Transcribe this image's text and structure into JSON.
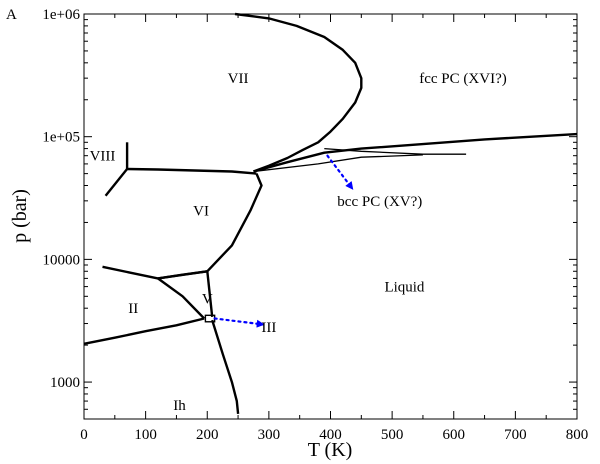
{
  "panel_label": "A",
  "chart_data": {
    "type": "line",
    "xlabel": "T (K)",
    "ylabel": "p (bar)",
    "xlim": [
      0,
      800
    ],
    "ylim": [
      500,
      1000000
    ],
    "yscale": "log",
    "grid": false,
    "x_ticks": [
      0,
      100,
      200,
      300,
      400,
      500,
      600,
      700,
      800
    ],
    "x_tick_labels": [
      "0",
      "100",
      "200",
      "300",
      "400",
      "500",
      "600",
      "700",
      "800"
    ],
    "y_ticks": [
      1000,
      10000,
      100000,
      1000000
    ],
    "y_tick_labels": [
      "1000",
      "10000",
      "1e+05",
      "1e+06"
    ],
    "phase_regions": [
      {
        "label": "VII",
        "x": 250,
        "y": 300000
      },
      {
        "label": "fcc PC (XVI?)",
        "x": 615,
        "y": 300000
      },
      {
        "label": "VIII",
        "x": 30,
        "y": 70000
      },
      {
        "label": "VI",
        "x": 190,
        "y": 25000
      },
      {
        "label": "bcc PC (XV?)",
        "x": 480,
        "y": 30000
      },
      {
        "label": "Liquid",
        "x": 520,
        "y": 6000
      },
      {
        "label": "V",
        "x": 200,
        "y": 4800
      },
      {
        "label": "II",
        "x": 80,
        "y": 4000
      },
      {
        "label": "III",
        "x": 300,
        "y": 2800
      },
      {
        "label": "Ih",
        "x": 155,
        "y": 650
      }
    ],
    "boundaries": [
      {
        "x": [
          245,
          300,
          345,
          390,
          420,
          440,
          450,
          450,
          440,
          420,
          400,
          380,
          355,
          330,
          300,
          275
        ],
        "y": [
          1000000,
          920000,
          800000,
          650000,
          510000,
          400000,
          300000,
          250000,
          190000,
          140000,
          110000,
          90000,
          78000,
          67000,
          58000,
          52000
        ]
      },
      {
        "x": [
          275,
          330,
          390,
          450,
          550,
          650,
          800
        ],
        "y": [
          52000,
          62000,
          74000,
          80000,
          87000,
          95000,
          105000
        ]
      },
      {
        "x": [
          275,
          380,
          450,
          550
        ],
        "y": [
          52000,
          60000,
          68000,
          71000
        ]
      },
      {
        "x": [
          390,
          450,
          550,
          620
        ],
        "y": [
          80000,
          76000,
          72000,
          72000
        ]
      },
      {
        "x": [
          70,
          120,
          180,
          240,
          280
        ],
        "y": [
          54500,
          54000,
          53000,
          52000,
          50000
        ]
      },
      {
        "x": [
          70,
          70
        ],
        "y": [
          54500,
          90000
        ]
      },
      {
        "x": [
          70,
          35
        ],
        "y": [
          54500,
          33000
        ]
      },
      {
        "x": [
          280,
          288,
          270,
          240,
          200
        ],
        "y": [
          50000,
          40000,
          25000,
          13000,
          8000
        ]
      },
      {
        "x": [
          200,
          160,
          120,
          80,
          30
        ],
        "y": [
          8000,
          7500,
          7000,
          7700,
          8700
        ]
      },
      {
        "x": [
          120,
          200
        ],
        "y": [
          7000,
          8000
        ]
      },
      {
        "x": [
          200,
          208
        ],
        "y": [
          8000,
          3400
        ]
      },
      {
        "x": [
          120,
          160,
          195
        ],
        "y": [
          7000,
          5000,
          3300
        ]
      },
      {
        "x": [
          195,
          150,
          100,
          50,
          0
        ],
        "y": [
          3300,
          2900,
          2600,
          2300,
          2050
        ]
      },
      {
        "x": [
          208,
          225,
          240,
          248,
          250
        ],
        "y": [
          3200,
          1700,
          1000,
          700,
          550
        ]
      }
    ],
    "triple_point_box": {
      "x": [
        197,
        212
      ],
      "y": [
        3100,
        3500
      ]
    },
    "arrows": [
      {
        "from": [
          212,
          3300
        ],
        "to": [
          290,
          2950
        ],
        "color": "#0000ff"
      },
      {
        "from": [
          395,
          70000
        ],
        "to": [
          435,
          38000
        ],
        "color": "#0000ff"
      }
    ],
    "line_color": "#000000",
    "arrow_color": "#0000ff"
  }
}
